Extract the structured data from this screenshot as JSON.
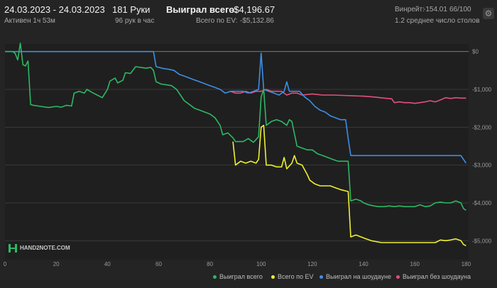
{
  "header": {
    "date_range": "24.03.2023 - 24.03.2023",
    "active": "Активен 1ч 53м",
    "hands": "181 Руки",
    "hands_per_hour": "96 рук в час",
    "won_label": "Выиграл всего:",
    "won_value": "-$4,196.67",
    "ev_label": "Всего по EV:",
    "ev_value": "-$5,132.86",
    "winrate_label": "Винрейт:",
    "winrate_value": "-154.01",
    "winrate_sample": "66/100",
    "tables": "1.2 среднее число столов"
  },
  "logo": {
    "text": "HAND2NOTE.COM"
  },
  "colors": {
    "green": "#2db864",
    "yellow": "#eef032",
    "blue": "#3c8fe6",
    "pink": "#e3507c"
  },
  "chart_data": {
    "type": "line",
    "xlabel": "",
    "ylabel": "",
    "x_ticks": [
      0,
      20,
      40,
      60,
      80,
      100,
      120,
      140,
      160,
      180
    ],
    "y_ticks": [
      "$0",
      "-$1,000",
      "-$2,000",
      "-$3,000",
      "-$4,000",
      "-$5,000"
    ],
    "y_tick_values": [
      0,
      -1000,
      -2000,
      -3000,
      -4000,
      -5000
    ],
    "xlim": [
      0,
      181
    ],
    "ylim": [
      -5500,
      200
    ],
    "legend_position": "bottom-right",
    "series": [
      {
        "name": "Выиграл всего",
        "color": "#2db864",
        "points": [
          [
            0,
            0
          ],
          [
            3,
            0
          ],
          [
            4,
            -50
          ],
          [
            5,
            -220
          ],
          [
            6,
            220
          ],
          [
            7,
            -350
          ],
          [
            8,
            -380
          ],
          [
            9,
            -250
          ],
          [
            10,
            -1400
          ],
          [
            11,
            -1420
          ],
          [
            14,
            -1450
          ],
          [
            17,
            -1480
          ],
          [
            20,
            -1450
          ],
          [
            22,
            -1470
          ],
          [
            24,
            -1420
          ],
          [
            26,
            -1440
          ],
          [
            27,
            -1100
          ],
          [
            29,
            -1050
          ],
          [
            31,
            -1100
          ],
          [
            32,
            -1000
          ],
          [
            34,
            -1080
          ],
          [
            36,
            -1150
          ],
          [
            38,
            -1220
          ],
          [
            40,
            -1000
          ],
          [
            41,
            -780
          ],
          [
            43,
            -700
          ],
          [
            44,
            -830
          ],
          [
            46,
            -760
          ],
          [
            47,
            -560
          ],
          [
            49,
            -580
          ],
          [
            51,
            -400
          ],
          [
            53,
            -420
          ],
          [
            55,
            -440
          ],
          [
            57,
            -420
          ],
          [
            58,
            -500
          ],
          [
            59,
            -800
          ],
          [
            61,
            -860
          ],
          [
            63,
            -880
          ],
          [
            65,
            -900
          ],
          [
            67,
            -1000
          ],
          [
            68,
            -1100
          ],
          [
            70,
            -1300
          ],
          [
            72,
            -1400
          ],
          [
            74,
            -1500
          ],
          [
            76,
            -1550
          ],
          [
            78,
            -1600
          ],
          [
            80,
            -1650
          ],
          [
            82,
            -1750
          ],
          [
            84,
            -1950
          ],
          [
            85,
            -2200
          ],
          [
            87,
            -2150
          ],
          [
            89,
            -2280
          ],
          [
            90,
            -2380
          ],
          [
            93,
            -2380
          ],
          [
            95,
            -2300
          ],
          [
            97,
            -2400
          ],
          [
            99,
            -2250
          ],
          [
            100,
            -1200
          ],
          [
            101,
            -1000
          ],
          [
            102,
            -1950
          ],
          [
            104,
            -1850
          ],
          [
            106,
            -1800
          ],
          [
            108,
            -1850
          ],
          [
            110,
            -1950
          ],
          [
            111,
            -1800
          ],
          [
            112,
            -1850
          ],
          [
            114,
            -2500
          ],
          [
            116,
            -2550
          ],
          [
            118,
            -2600
          ],
          [
            120,
            -2600
          ],
          [
            122,
            -2700
          ],
          [
            124,
            -2750
          ],
          [
            126,
            -2800
          ],
          [
            128,
            -2850
          ],
          [
            130,
            -2900
          ],
          [
            134,
            -2900
          ],
          [
            135,
            -3950
          ],
          [
            137,
            -3900
          ],
          [
            139,
            -3950
          ],
          [
            140,
            -4000
          ],
          [
            142,
            -4050
          ],
          [
            144,
            -4080
          ],
          [
            146,
            -4100
          ],
          [
            148,
            -4100
          ],
          [
            150,
            -4080
          ],
          [
            152,
            -4100
          ],
          [
            154,
            -4080
          ],
          [
            156,
            -4100
          ],
          [
            158,
            -4100
          ],
          [
            160,
            -4100
          ],
          [
            162,
            -4050
          ],
          [
            164,
            -4100
          ],
          [
            166,
            -4080
          ],
          [
            168,
            -4000
          ],
          [
            170,
            -3980
          ],
          [
            172,
            -4000
          ],
          [
            174,
            -4000
          ],
          [
            176,
            -3950
          ],
          [
            178,
            -4000
          ],
          [
            179,
            -4150
          ],
          [
            180,
            -4197
          ]
        ]
      },
      {
        "name": "Всего по EV",
        "color": "#eef032",
        "points": [
          [
            89,
            -2380
          ],
          [
            90,
            -3000
          ],
          [
            92,
            -2900
          ],
          [
            94,
            -2950
          ],
          [
            96,
            -2900
          ],
          [
            98,
            -2950
          ],
          [
            99,
            -2850
          ],
          [
            100,
            -2000
          ],
          [
            101,
            -1950
          ],
          [
            102,
            -3000
          ],
          [
            104,
            -3000
          ],
          [
            106,
            -3050
          ],
          [
            108,
            -3050
          ],
          [
            109,
            -2800
          ],
          [
            110,
            -3100
          ],
          [
            112,
            -2950
          ],
          [
            113,
            -2750
          ],
          [
            114,
            -2950
          ],
          [
            116,
            -3000
          ],
          [
            118,
            -3250
          ],
          [
            119,
            -3400
          ],
          [
            121,
            -3500
          ],
          [
            123,
            -3550
          ],
          [
            125,
            -3550
          ],
          [
            127,
            -3550
          ],
          [
            129,
            -3600
          ],
          [
            131,
            -3650
          ],
          [
            134,
            -3700
          ],
          [
            135,
            -4900
          ],
          [
            137,
            -4850
          ],
          [
            139,
            -4900
          ],
          [
            141,
            -4950
          ],
          [
            143,
            -5000
          ],
          [
            147,
            -5050
          ],
          [
            152,
            -5050
          ],
          [
            158,
            -5050
          ],
          [
            163,
            -5050
          ],
          [
            168,
            -5050
          ],
          [
            170,
            -4980
          ],
          [
            172,
            -5000
          ],
          [
            174,
            -4980
          ],
          [
            176,
            -4950
          ],
          [
            178,
            -5000
          ],
          [
            179,
            -5100
          ],
          [
            180,
            -5133
          ]
        ]
      },
      {
        "name": "Выиграл на шоудауне",
        "color": "#3c8fe6",
        "points": [
          [
            0,
            0
          ],
          [
            58,
            0
          ],
          [
            59,
            -400
          ],
          [
            62,
            -450
          ],
          [
            64,
            -470
          ],
          [
            66,
            -500
          ],
          [
            68,
            -600
          ],
          [
            70,
            -650
          ],
          [
            72,
            -700
          ],
          [
            74,
            -750
          ],
          [
            76,
            -800
          ],
          [
            78,
            -850
          ],
          [
            80,
            -900
          ],
          [
            82,
            -950
          ],
          [
            84,
            -1000
          ],
          [
            86,
            -1100
          ],
          [
            88,
            -1050
          ],
          [
            90,
            -1050
          ],
          [
            93,
            -1050
          ],
          [
            95,
            -1100
          ],
          [
            97,
            -1050
          ],
          [
            99,
            -1000
          ],
          [
            100,
            -40
          ],
          [
            101,
            -1000
          ],
          [
            103,
            -1050
          ],
          [
            105,
            -1100
          ],
          [
            107,
            -1150
          ],
          [
            109,
            -1050
          ],
          [
            110,
            -800
          ],
          [
            111,
            -1050
          ],
          [
            113,
            -1050
          ],
          [
            115,
            -1050
          ],
          [
            117,
            -1200
          ],
          [
            119,
            -1300
          ],
          [
            121,
            -1450
          ],
          [
            123,
            -1550
          ],
          [
            125,
            -1600
          ],
          [
            127,
            -1700
          ],
          [
            129,
            -1750
          ],
          [
            131,
            -1800
          ],
          [
            133,
            -1800
          ],
          [
            134,
            -2300
          ],
          [
            135,
            -2750
          ],
          [
            140,
            -2750
          ],
          [
            150,
            -2750
          ],
          [
            160,
            -2750
          ],
          [
            170,
            -2750
          ],
          [
            176,
            -2750
          ],
          [
            178,
            -2750
          ],
          [
            179,
            -2850
          ],
          [
            180,
            -2950
          ]
        ]
      },
      {
        "name": "Выиграл без шоудауна",
        "color": "#e3507c",
        "points": [
          [
            88,
            -1050
          ],
          [
            90,
            -1100
          ],
          [
            92,
            -1100
          ],
          [
            94,
            -1050
          ],
          [
            96,
            -1100
          ],
          [
            98,
            -1050
          ],
          [
            100,
            -1050
          ],
          [
            102,
            -1000
          ],
          [
            104,
            -1050
          ],
          [
            106,
            -1050
          ],
          [
            108,
            -1050
          ],
          [
            110,
            -1150
          ],
          [
            112,
            -1100
          ],
          [
            114,
            -1100
          ],
          [
            116,
            -1150
          ],
          [
            120,
            -1120
          ],
          [
            124,
            -1150
          ],
          [
            128,
            -1150
          ],
          [
            132,
            -1160
          ],
          [
            136,
            -1170
          ],
          [
            140,
            -1180
          ],
          [
            144,
            -1200
          ],
          [
            148,
            -1230
          ],
          [
            151,
            -1250
          ],
          [
            152,
            -1350
          ],
          [
            154,
            -1330
          ],
          [
            156,
            -1350
          ],
          [
            158,
            -1350
          ],
          [
            160,
            -1370
          ],
          [
            162,
            -1350
          ],
          [
            164,
            -1330
          ],
          [
            166,
            -1300
          ],
          [
            168,
            -1330
          ],
          [
            170,
            -1280
          ],
          [
            172,
            -1220
          ],
          [
            174,
            -1240
          ],
          [
            176,
            -1220
          ],
          [
            178,
            -1230
          ],
          [
            180,
            -1230
          ]
        ]
      }
    ]
  }
}
